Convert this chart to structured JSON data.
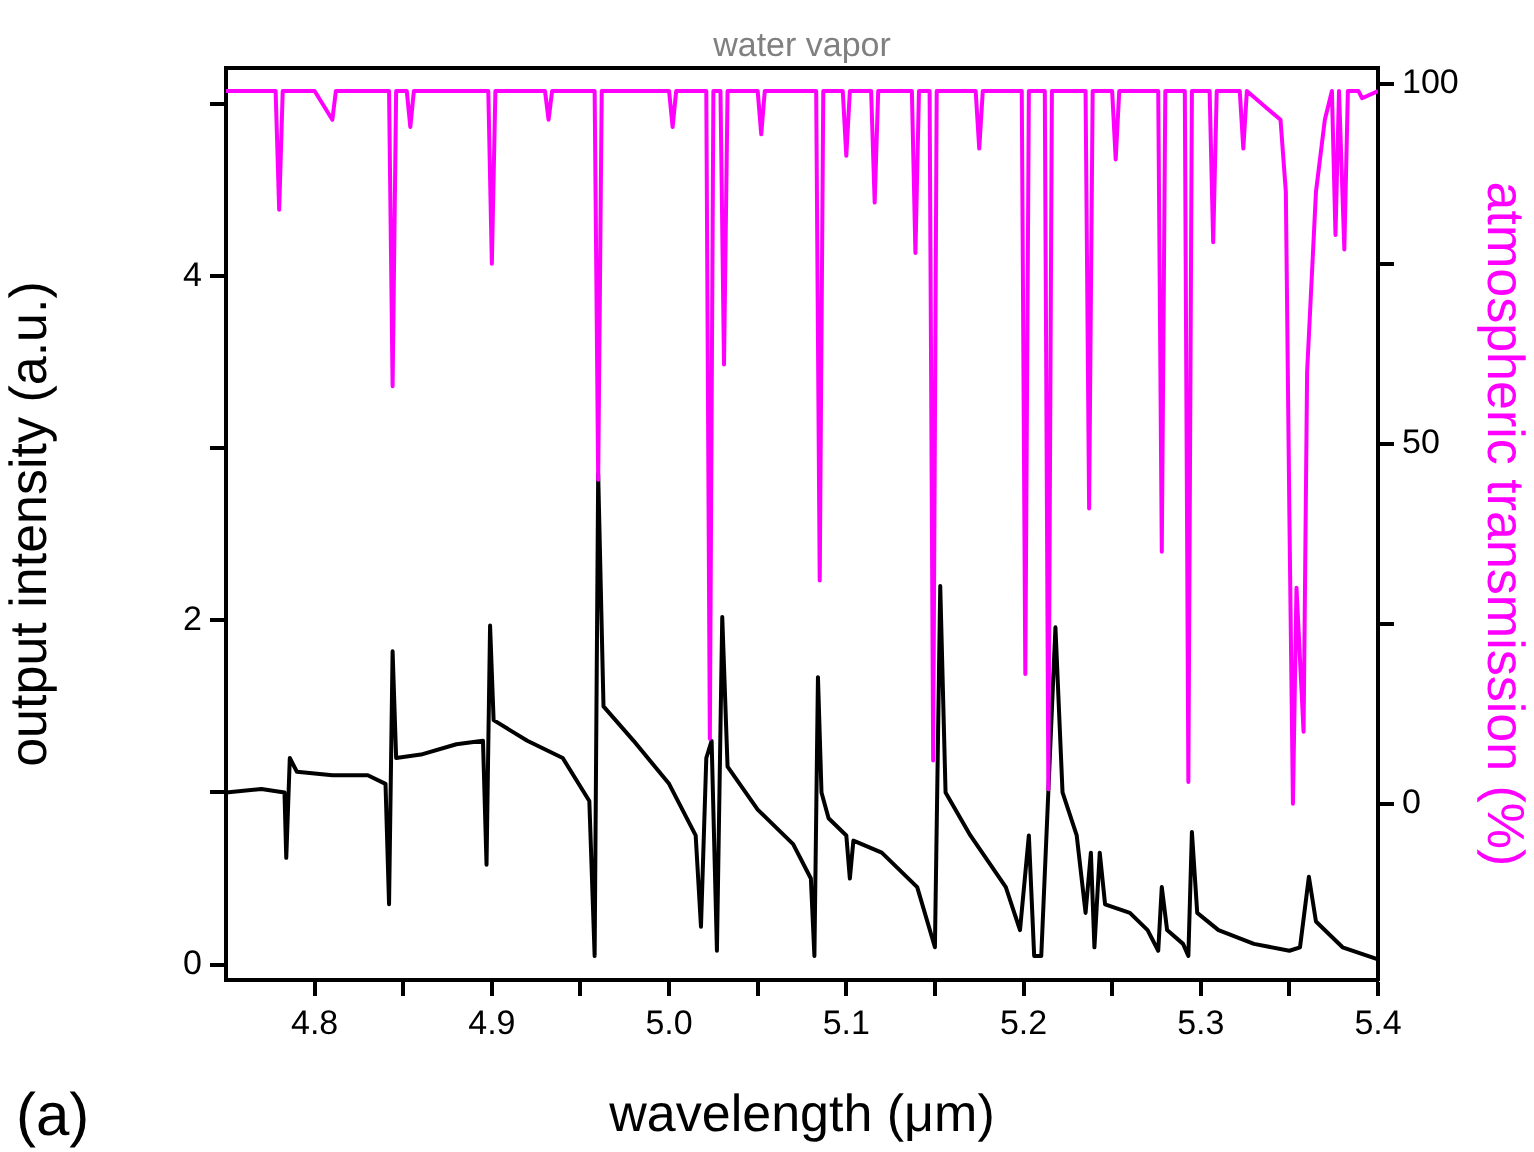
{
  "chart_data": {
    "type": "line",
    "xlabel": "wavelength (μm)",
    "ylabel": "output intensity (a.u.)",
    "y2label": "atmospheric transmission (%)",
    "annotations": [
      "water vapor",
      "(a)"
    ],
    "xlim": [
      4.75,
      5.4
    ],
    "xticks": [
      4.8,
      {
        "value": 4.85,
        "label": null
      },
      4.9,
      {
        "value": 4.95,
        "label": null
      },
      "5.0",
      {
        "value": 5.05,
        "label": null
      },
      5.1,
      {
        "value": 5.15,
        "label": null
      },
      5.2,
      {
        "value": 5.25,
        "label": null
      },
      5.3,
      {
        "value": 5.35,
        "label": null
      },
      5.4
    ],
    "ylim": [
      -0.09,
      5.21
    ],
    "yticks": [
      0,
      {
        "value": 1,
        "label": null
      },
      2,
      {
        "value": 3,
        "label": null
      },
      4,
      {
        "value": 5,
        "label": null
      }
    ],
    "y2lim": [
      -24.5,
      102.2
    ],
    "y2ticks": [
      0,
      {
        "value": 25,
        "label": null
      },
      50,
      {
        "value": 75,
        "label": null
      },
      100
    ],
    "grid": false,
    "legend": false,
    "marker": "none",
    "line_style": "solid",
    "series": [
      {
        "color": "#000000",
        "x": [
          4.75,
          4.77,
          4.783,
          4.784,
          4.786,
          4.79,
          4.81,
          4.83,
          4.84,
          4.842,
          4.844,
          4.846,
          4.86,
          4.88,
          4.895,
          4.897,
          4.899,
          4.901,
          4.92,
          4.94,
          4.955,
          4.958,
          4.96,
          4.963,
          4.98,
          5.0,
          5.015,
          5.018,
          5.021,
          5.024,
          5.027,
          5.03,
          5.033,
          5.05,
          5.07,
          5.08,
          5.082,
          5.084,
          5.086,
          5.09,
          5.1,
          5.102,
          5.104,
          5.12,
          5.14,
          5.15,
          5.153,
          5.156,
          5.17,
          5.19,
          5.198,
          5.203,
          5.206,
          5.21,
          5.218,
          5.222,
          5.23,
          5.235,
          5.238,
          5.24,
          5.243,
          5.246,
          5.26,
          5.27,
          5.276,
          5.278,
          5.281,
          5.29,
          5.293,
          5.295,
          5.298,
          5.31,
          5.33,
          5.35,
          5.356,
          5.361,
          5.365,
          5.38,
          5.4
        ],
        "values": [
          1.0,
          1.02,
          1.0,
          0.62,
          1.2,
          1.12,
          1.1,
          1.1,
          1.05,
          0.35,
          1.82,
          1.2,
          1.22,
          1.28,
          1.3,
          0.58,
          1.97,
          1.42,
          1.3,
          1.2,
          0.95,
          0.05,
          2.85,
          1.5,
          1.3,
          1.05,
          0.75,
          0.22,
          1.2,
          1.3,
          0.08,
          2.02,
          1.15,
          0.9,
          0.7,
          0.5,
          0.05,
          1.67,
          1.0,
          0.85,
          0.75,
          0.5,
          0.72,
          0.65,
          0.45,
          0.1,
          2.2,
          1.0,
          0.75,
          0.45,
          0.2,
          0.75,
          0.05,
          0.05,
          1.96,
          1.0,
          0.75,
          0.3,
          0.65,
          0.1,
          0.65,
          0.35,
          0.3,
          0.2,
          0.08,
          0.45,
          0.2,
          0.12,
          0.05,
          0.77,
          0.3,
          0.2,
          0.12,
          0.08,
          0.1,
          0.51,
          0.25,
          0.1,
          0.03
        ]
      },
      {
        "color": "#ff00ff",
        "axis": "y2",
        "x": [
          4.75,
          4.778,
          4.78,
          4.782,
          4.8,
          4.81,
          4.812,
          4.842,
          4.844,
          4.846,
          4.852,
          4.854,
          4.856,
          4.898,
          4.9,
          4.902,
          4.93,
          4.932,
          4.934,
          4.958,
          4.96,
          4.962,
          5.0,
          5.002,
          5.004,
          5.021,
          5.023,
          5.025,
          5.029,
          5.031,
          5.033,
          5.05,
          5.052,
          5.054,
          5.083,
          5.085,
          5.087,
          5.098,
          5.1,
          5.102,
          5.114,
          5.116,
          5.118,
          5.137,
          5.139,
          5.141,
          5.147,
          5.149,
          5.151,
          5.173,
          5.175,
          5.177,
          5.199,
          5.201,
          5.203,
          5.212,
          5.214,
          5.216,
          5.235,
          5.237,
          5.239,
          5.25,
          5.252,
          5.254,
          5.276,
          5.278,
          5.28,
          5.291,
          5.293,
          5.295,
          5.305,
          5.307,
          5.309,
          5.322,
          5.324,
          5.326,
          5.345,
          5.348,
          5.35,
          5.352,
          5.354,
          5.356,
          5.358,
          5.36,
          5.365,
          5.37,
          5.374,
          5.376,
          5.378,
          5.381,
          5.383,
          5.389,
          5.391,
          5.4
        ],
        "values": [
          99,
          99,
          82.5,
          99,
          99,
          95,
          99,
          99,
          58,
          99,
          99,
          94,
          99,
          99,
          75,
          99,
          99,
          95,
          99,
          99,
          45,
          99,
          99,
          94,
          99,
          99,
          9,
          99,
          99,
          61,
          99,
          99,
          93,
          99,
          99,
          31,
          99,
          99,
          90,
          99,
          99,
          83.5,
          99,
          99,
          76.5,
          99,
          99,
          6,
          99,
          99,
          91,
          99,
          99,
          18,
          99,
          99,
          2,
          99,
          99,
          41,
          99,
          99,
          89.5,
          99,
          99,
          35,
          99,
          99,
          3,
          99,
          99,
          78,
          99,
          99,
          91,
          99,
          95,
          85,
          40,
          0,
          30,
          20,
          10,
          60,
          85,
          95,
          99,
          79,
          99,
          77,
          99,
          99,
          98,
          99
        ]
      }
    ]
  }
}
